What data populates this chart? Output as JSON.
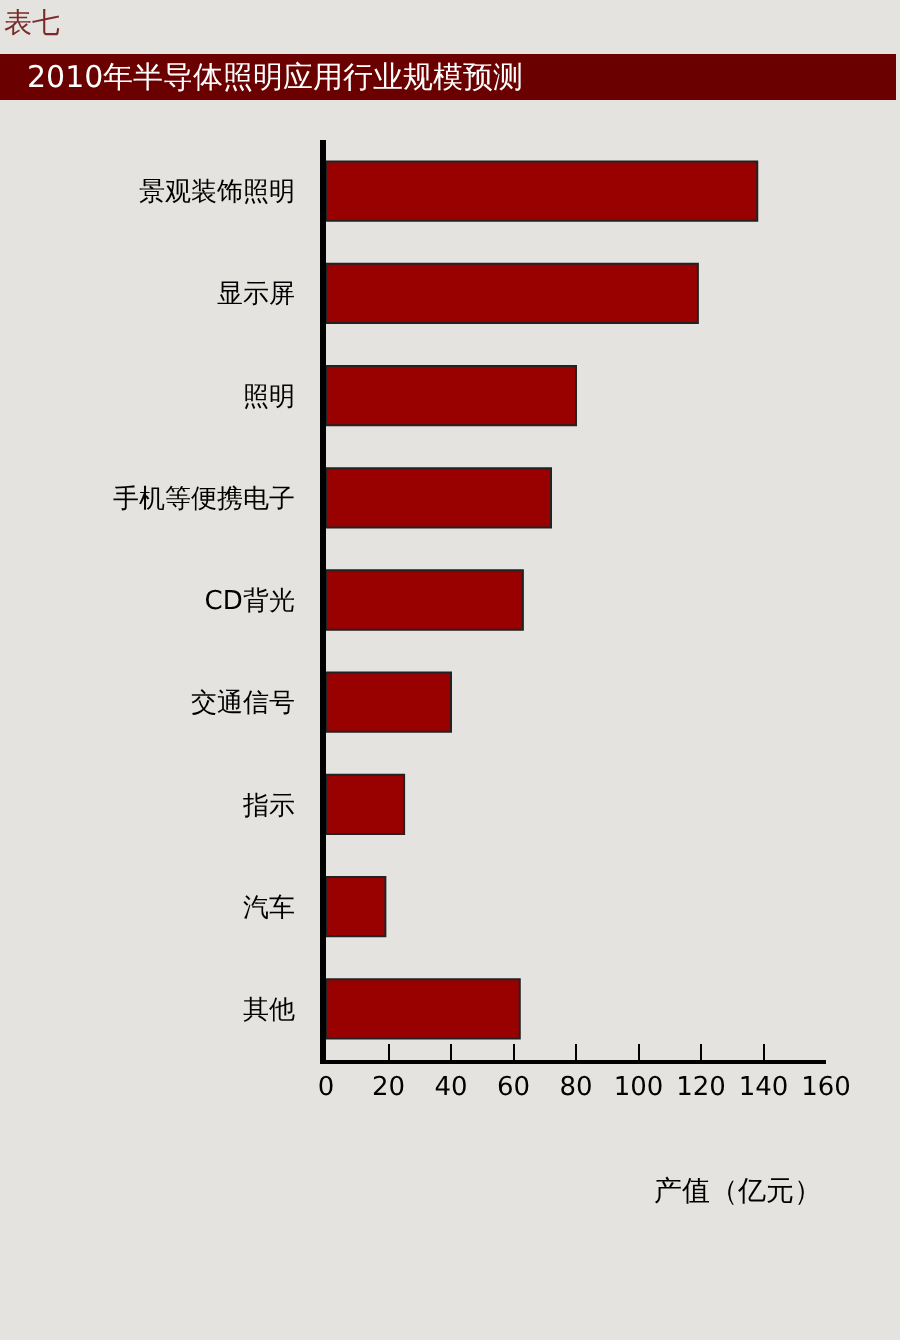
{
  "chart_data": {
    "type": "bar",
    "orientation": "horizontal",
    "title": "2010年半导体照明应用行业规模预测",
    "annotations": [
      "表七"
    ],
    "categories": [
      "景观装饰照明",
      "显示屏",
      "照明",
      "手机等便携电子",
      "CD背光",
      "交通信号",
      "指示",
      "汽车",
      "其他"
    ],
    "values": [
      138,
      119,
      80,
      72,
      63,
      40,
      25,
      19,
      62
    ],
    "color": "#990000",
    "xlabel": "产值（亿元）",
    "xlim": [
      0,
      160
    ],
    "xticks": [
      0,
      20,
      40,
      60,
      80,
      100,
      120,
      140,
      160
    ],
    "grid": false,
    "legend": false
  }
}
